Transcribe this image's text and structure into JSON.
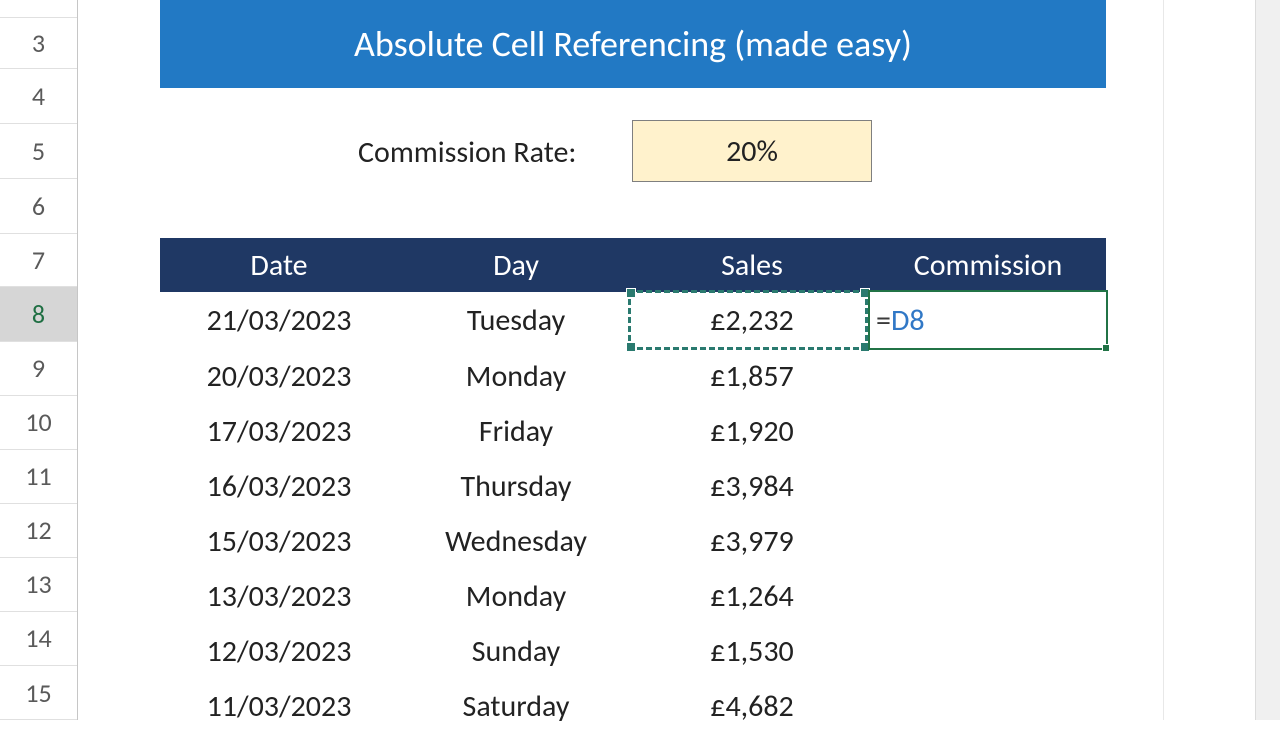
{
  "title": "Absolute Cell Referencing (made easy)",
  "title_banner": {
    "bg": "#2279c4",
    "fg": "#ffffff",
    "fontsize": 36
  },
  "commission": {
    "label": "Commission Rate:",
    "value": "20%"
  },
  "commission_box": {
    "bg": "#fff2cc",
    "border": "#7f7f7f",
    "fontsize": 30
  },
  "row_numbers": [
    "3",
    "4",
    "5",
    "6",
    "7",
    "8",
    "9",
    "10",
    "11",
    "12",
    "13",
    "14",
    "15"
  ],
  "active_row": "8",
  "editing": {
    "prefix": "=",
    "ref": "D8"
  },
  "table": {
    "header_bg": "#1f3864",
    "header_fg": "#ffffff",
    "columns": [
      "Date",
      "Day",
      "Sales",
      "Commission"
    ],
    "rows": [
      {
        "date": "21/03/2023",
        "day": "Tuesday",
        "sales": "£2,232",
        "commission": ""
      },
      {
        "date": "20/03/2023",
        "day": "Monday",
        "sales": "£1,857",
        "commission": ""
      },
      {
        "date": "17/03/2023",
        "day": "Friday",
        "sales": "£1,920",
        "commission": ""
      },
      {
        "date": "16/03/2023",
        "day": "Thursday",
        "sales": "£3,984",
        "commission": ""
      },
      {
        "date": "15/03/2023",
        "day": "Wednesday",
        "sales": "£3,979",
        "commission": ""
      },
      {
        "date": "13/03/2023",
        "day": "Monday",
        "sales": "£1,264",
        "commission": ""
      },
      {
        "date": "12/03/2023",
        "day": "Sunday",
        "sales": "£1,530",
        "commission": ""
      },
      {
        "date": "11/03/2023",
        "day": "Saturday",
        "sales": "£4,682",
        "commission": ""
      }
    ]
  },
  "marquee": {
    "border_color": "#2a7a6f"
  },
  "active_cell_border": "#217346"
}
